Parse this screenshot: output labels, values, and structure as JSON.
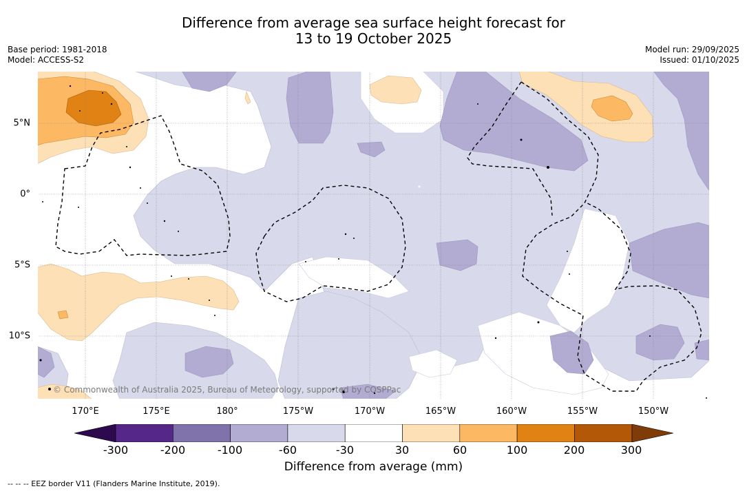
{
  "title_line1": "Difference from average sea surface height forecast for",
  "title_line2": "13 to 19 October 2025",
  "base_period": "Base period: 1981-2018",
  "model": "Model: ACCESS-S2",
  "model_run": "Model run: 29/09/2025",
  "issued": "Issued: 01/10/2025",
  "longitude_labels": [
    "170°E",
    "175°E",
    "180°",
    "175°W",
    "170°W",
    "165°W",
    "160°W",
    "155°W",
    "150°W"
  ],
  "latitude_labels": [
    "5°N",
    "0°",
    "5°S",
    "10°S"
  ],
  "copyright": "© Commonwealth of Australia 2025, Bureau of Meteorology, supported by COSPPac",
  "colorbar": {
    "ticks": [
      "-300",
      "-200",
      "-100",
      "-60",
      "-30",
      "30",
      "60",
      "100",
      "200",
      "300"
    ],
    "colors": {
      "lt_-300": "#2d0a4e",
      "-300_-200": "#542788",
      "-200_-100": "#8073ac",
      "-100_-60": "#b2abd2",
      "-60_-30": "#d8daeb",
      "-30_30": "#ffffff",
      "30_60": "#fee0b6",
      "60_100": "#fdb863",
      "100_200": "#e08214",
      "200_300": "#b35806",
      "gt_300": "#7f3b08"
    },
    "label": "Difference from average (mm)"
  },
  "legend_eez": "--  --  -- EEZ border V11 (Flanders Marine Institute, 2019)."
}
